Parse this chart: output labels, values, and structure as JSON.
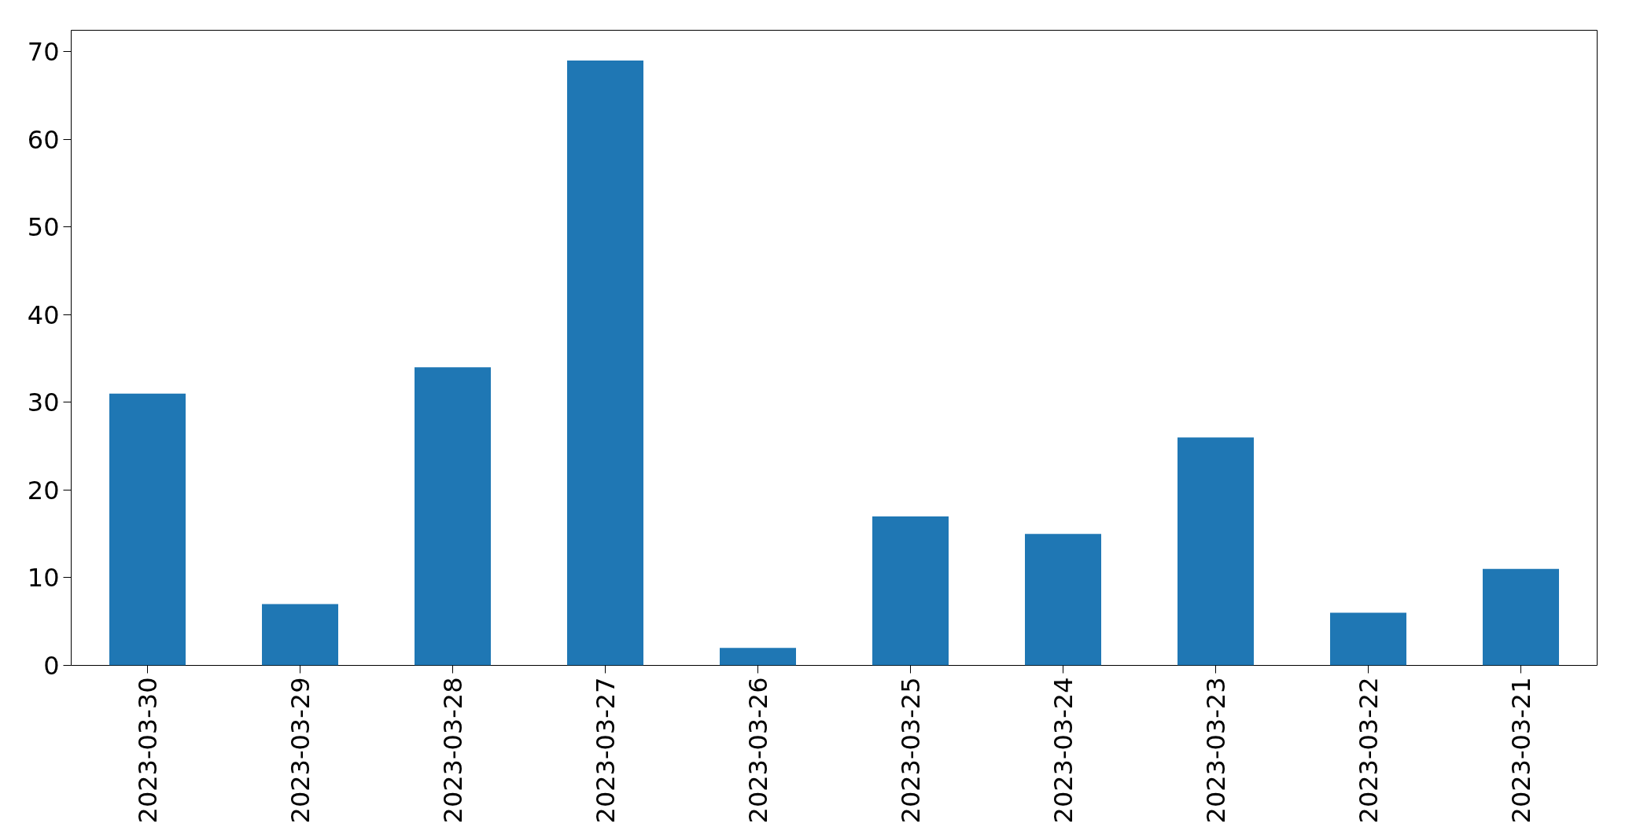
{
  "chart_data": {
    "type": "bar",
    "categories": [
      "2023-03-30",
      "2023-03-29",
      "2023-03-28",
      "2023-03-27",
      "2023-03-26",
      "2023-03-25",
      "2023-03-24",
      "2023-03-23",
      "2023-03-22",
      "2023-03-21"
    ],
    "values": [
      31,
      7,
      34,
      69,
      2,
      17,
      15,
      26,
      6,
      11
    ],
    "color": "#1f77b4",
    "ylim": [
      0,
      72.45
    ],
    "yticks": [
      0,
      10,
      20,
      30,
      40,
      50,
      60,
      70
    ],
    "grid": false
  }
}
